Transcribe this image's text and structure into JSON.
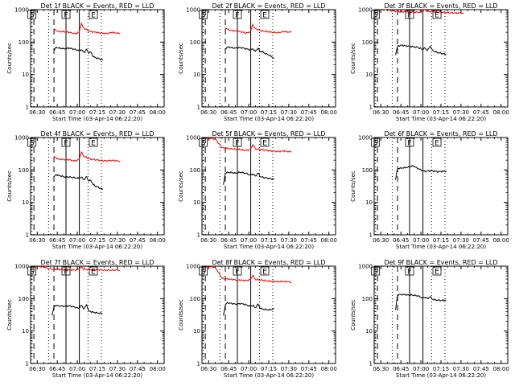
{
  "chart_data": {
    "type": "line",
    "layout": "3x3 grid",
    "x_tick_labels": [
      "06:30",
      "06:45",
      "07:00",
      "07:15",
      "07:30",
      "07:45",
      "08:00"
    ],
    "x_range_minutes_after_0630": [
      -5,
      95
    ],
    "xlabel": "Start Time (03-Apr-14 06:22:20)",
    "ylabel": "Counts/sec",
    "yscale": "log",
    "ylim": [
      1,
      1000
    ],
    "y_tick_labels": [
      "1",
      "10",
      "100",
      "1000"
    ],
    "series_legend": {
      "events_color": "#000000",
      "lld_color": "#ff0000"
    },
    "marker_labels": {
      "start": "S",
      "flare": "F",
      "end": "E"
    },
    "panels": [
      {
        "title": "Det 1f BLACK = Events, RED = LLD",
        "dashed": [
          -2.5,
          12.5
        ],
        "dotted": [
          -4,
          8.5,
          38,
          48
        ],
        "solid": [
          21.5,
          31.5
        ],
        "t_end": 42,
        "events": [
          [
            12.5,
            55
          ],
          [
            14,
            70
          ],
          [
            16,
            65
          ],
          [
            20,
            63
          ],
          [
            24,
            65
          ],
          [
            28,
            60
          ],
          [
            31,
            55
          ],
          [
            33,
            58
          ],
          [
            35,
            48
          ],
          [
            37,
            60
          ],
          [
            38.5,
            45
          ],
          [
            40,
            50
          ],
          [
            42,
            35
          ],
          [
            45,
            32
          ],
          [
            49,
            28
          ]
        ],
        "lld": [
          [
            12.5,
            260
          ],
          [
            14,
            230
          ],
          [
            16,
            210
          ],
          [
            20,
            210
          ],
          [
            24,
            200
          ],
          [
            26,
            190
          ],
          [
            28,
            180
          ],
          [
            30,
            190
          ],
          [
            31.5,
            210
          ],
          [
            33,
            380
          ],
          [
            34.5,
            280
          ],
          [
            37,
            240
          ],
          [
            40,
            210
          ],
          [
            44,
            200
          ],
          [
            48,
            190
          ],
          [
            52,
            180
          ],
          [
            56,
            200
          ],
          [
            60,
            190
          ],
          [
            62,
            185
          ]
        ]
      },
      {
        "title": "Det 2f BLACK = Events, RED = LLD",
        "dashed": [
          -2.5,
          12.5
        ],
        "dotted": [
          -4,
          8.5,
          38,
          48
        ],
        "solid": [
          21.5,
          31.5
        ],
        "t_end": 42,
        "events": [
          [
            12.5,
            60
          ],
          [
            14,
            70
          ],
          [
            16,
            68
          ],
          [
            20,
            65
          ],
          [
            24,
            68
          ],
          [
            28,
            62
          ],
          [
            31,
            58
          ],
          [
            33,
            62
          ],
          [
            35,
            52
          ],
          [
            37,
            65
          ],
          [
            38.5,
            50
          ],
          [
            40,
            52
          ],
          [
            42,
            45
          ],
          [
            45,
            40
          ],
          [
            49,
            32
          ]
        ],
        "lld": [
          [
            12.5,
            280
          ],
          [
            14,
            250
          ],
          [
            16,
            230
          ],
          [
            20,
            220
          ],
          [
            24,
            210
          ],
          [
            26,
            200
          ],
          [
            28,
            190
          ],
          [
            30,
            200
          ],
          [
            31.5,
            220
          ],
          [
            33,
            350
          ],
          [
            34.5,
            270
          ],
          [
            37,
            240
          ],
          [
            40,
            220
          ],
          [
            44,
            210
          ],
          [
            48,
            200
          ],
          [
            52,
            195
          ],
          [
            56,
            210
          ],
          [
            60,
            205
          ],
          [
            62,
            200
          ]
        ]
      },
      {
        "title": "Det 3f BLACK = Events, RED = LLD",
        "dashed": [
          -2.5,
          12.5
        ],
        "dotted": [
          -4,
          8.5,
          38,
          48
        ],
        "solid": [
          21.5,
          31.5
        ],
        "t_end": 42,
        "events": [
          [
            11,
            40
          ],
          [
            12.5,
            75
          ],
          [
            15,
            80
          ],
          [
            20,
            75
          ],
          [
            24,
            72
          ],
          [
            28,
            68
          ],
          [
            31,
            60
          ],
          [
            33,
            65
          ],
          [
            35,
            55
          ],
          [
            37,
            75
          ],
          [
            38.5,
            58
          ],
          [
            40,
            52
          ],
          [
            42,
            48
          ],
          [
            45,
            45
          ],
          [
            49,
            42
          ]
        ],
        "lld": [
          [
            -4,
            1000
          ],
          [
            5,
            980
          ],
          [
            10,
            900
          ],
          [
            12.5,
            880
          ],
          [
            20,
            860
          ],
          [
            24,
            840
          ],
          [
            28,
            830
          ],
          [
            30,
            850
          ],
          [
            31.5,
            920
          ],
          [
            33,
            1000
          ],
          [
            35,
            880
          ],
          [
            40,
            860
          ],
          [
            44,
            840
          ],
          [
            48,
            820
          ],
          [
            52,
            800
          ],
          [
            56,
            790
          ],
          [
            60,
            780
          ],
          [
            62,
            760
          ]
        ]
      },
      {
        "title": "Det 4f BLACK = Events, RED = LLD",
        "dashed": [
          -2.5,
          12.5
        ],
        "dotted": [
          -4,
          8.5,
          38,
          48
        ],
        "solid": [
          21.5,
          31.5
        ],
        "t_end": 42,
        "events": [
          [
            12.5,
            60
          ],
          [
            14,
            72
          ],
          [
            16,
            68
          ],
          [
            20,
            62
          ],
          [
            24,
            60
          ],
          [
            28,
            58
          ],
          [
            31,
            55
          ],
          [
            33,
            60
          ],
          [
            35,
            50
          ],
          [
            37,
            62
          ],
          [
            38.5,
            45
          ],
          [
            40,
            48
          ],
          [
            42,
            35
          ],
          [
            45,
            30
          ],
          [
            49,
            25
          ]
        ],
        "lld": [
          [
            12.5,
            260
          ],
          [
            14,
            240
          ],
          [
            16,
            215
          ],
          [
            20,
            210
          ],
          [
            24,
            205
          ],
          [
            26,
            195
          ],
          [
            28,
            190
          ],
          [
            30,
            200
          ],
          [
            31.5,
            220
          ],
          [
            33,
            360
          ],
          [
            34.5,
            270
          ],
          [
            37,
            240
          ],
          [
            40,
            215
          ],
          [
            44,
            205
          ],
          [
            48,
            195
          ],
          [
            52,
            190
          ],
          [
            56,
            200
          ],
          [
            60,
            190
          ],
          [
            62,
            185
          ]
        ]
      },
      {
        "title": "Det 5f BLACK = Events, RED = LLD",
        "dashed": [
          -2.5,
          12.5
        ],
        "dotted": [
          -4,
          8.5,
          38,
          48
        ],
        "solid": [
          21.5,
          31.5
        ],
        "t_end": 42,
        "events": [
          [
            11,
            35
          ],
          [
            12.5,
            80
          ],
          [
            15,
            85
          ],
          [
            20,
            80
          ],
          [
            24,
            85
          ],
          [
            28,
            78
          ],
          [
            31,
            70
          ],
          [
            33,
            75
          ],
          [
            35,
            65
          ],
          [
            37,
            80
          ],
          [
            38.5,
            62
          ],
          [
            40,
            60
          ],
          [
            42,
            58
          ],
          [
            45,
            55
          ],
          [
            49,
            52
          ]
        ],
        "lld": [
          [
            -4,
            1000
          ],
          [
            5,
            900
          ],
          [
            10,
            480
          ],
          [
            12.5,
            470
          ],
          [
            20,
            440
          ],
          [
            24,
            420
          ],
          [
            28,
            400
          ],
          [
            30,
            410
          ],
          [
            31.5,
            450
          ],
          [
            33,
            600
          ],
          [
            35,
            450
          ],
          [
            40,
            420
          ],
          [
            44,
            400
          ],
          [
            48,
            380
          ],
          [
            52,
            370
          ],
          [
            56,
            380
          ],
          [
            60,
            370
          ],
          [
            62,
            360
          ]
        ]
      },
      {
        "title": "Det 6f BLACK = Events, RED = LLD",
        "dashed": [
          -2.5,
          12.5
        ],
        "dotted": [
          -4,
          8.5,
          38,
          48
        ],
        "solid": [
          21.5,
          31.5
        ],
        "t_end": 42,
        "events": [
          [
            11,
            50
          ],
          [
            12.5,
            110
          ],
          [
            15,
            115
          ],
          [
            20,
            120
          ],
          [
            22,
            125
          ],
          [
            24,
            135
          ],
          [
            26,
            120
          ],
          [
            28,
            110
          ],
          [
            30,
            100
          ],
          [
            33,
            90
          ],
          [
            37,
            95
          ],
          [
            40,
            92
          ],
          [
            42,
            88
          ],
          [
            45,
            90
          ],
          [
            49,
            92
          ]
        ],
        "lld": []
      },
      {
        "title": "Det 7f BLACK = Events, RED = LLD",
        "dashed": [
          -2.5,
          12.5
        ],
        "dotted": [
          -4,
          8.5,
          38,
          48
        ],
        "solid": [
          21.5,
          31.5
        ],
        "t_end": 42,
        "events": [
          [
            11,
            30
          ],
          [
            12.5,
            55
          ],
          [
            14,
            62
          ],
          [
            16,
            60
          ],
          [
            20,
            58
          ],
          [
            24,
            60
          ],
          [
            28,
            55
          ],
          [
            31,
            50
          ],
          [
            33,
            62
          ],
          [
            35,
            48
          ],
          [
            37,
            65
          ],
          [
            38.5,
            42
          ],
          [
            40,
            40
          ],
          [
            42,
            38
          ],
          [
            45,
            36
          ],
          [
            49,
            35
          ]
        ],
        "lld": [
          [
            -4,
            1000
          ],
          [
            5,
            950
          ],
          [
            10,
            820
          ],
          [
            12.5,
            800
          ],
          [
            20,
            780
          ],
          [
            24,
            770
          ],
          [
            28,
            760
          ],
          [
            30,
            780
          ],
          [
            31.5,
            820
          ],
          [
            33,
            950
          ],
          [
            35,
            800
          ],
          [
            40,
            780
          ],
          [
            44,
            770
          ],
          [
            48,
            760
          ],
          [
            52,
            750
          ],
          [
            56,
            760
          ],
          [
            60,
            750
          ],
          [
            62,
            740
          ]
        ]
      },
      {
        "title": "Det 8f BLACK = Events, RED = LLD",
        "dashed": [
          -2.5,
          12.5
        ],
        "dotted": [
          -4,
          8.5,
          38,
          48
        ],
        "solid": [
          21.5,
          31.5
        ],
        "t_end": 42,
        "events": [
          [
            11,
            30
          ],
          [
            12.5,
            65
          ],
          [
            14,
            75
          ],
          [
            16,
            72
          ],
          [
            20,
            68
          ],
          [
            24,
            70
          ],
          [
            28,
            65
          ],
          [
            31,
            58
          ],
          [
            33,
            62
          ],
          [
            35,
            52
          ],
          [
            37,
            68
          ],
          [
            38.5,
            50
          ],
          [
            40,
            48
          ],
          [
            42,
            46
          ],
          [
            45,
            45
          ],
          [
            49,
            48
          ]
        ],
        "lld": [
          [
            -4,
            1000
          ],
          [
            5,
            920
          ],
          [
            10,
            420
          ],
          [
            12.5,
            410
          ],
          [
            20,
            380
          ],
          [
            24,
            370
          ],
          [
            28,
            360
          ],
          [
            30,
            370
          ],
          [
            31.5,
            400
          ],
          [
            33,
            520
          ],
          [
            35,
            390
          ],
          [
            40,
            370
          ],
          [
            44,
            350
          ],
          [
            48,
            340
          ],
          [
            52,
            330
          ],
          [
            56,
            340
          ],
          [
            60,
            330
          ],
          [
            62,
            320
          ]
        ]
      },
      {
        "title": "Det 9f BLACK = Events, RED = LLD",
        "dashed": [
          -2.5,
          12.5
        ],
        "dotted": [
          -4,
          8.5,
          38,
          48
        ],
        "solid": [
          21.5,
          31.5
        ],
        "t_end": 42,
        "events": [
          [
            11,
            45
          ],
          [
            12.5,
            130
          ],
          [
            15,
            135
          ],
          [
            20,
            130
          ],
          [
            24,
            128
          ],
          [
            28,
            120
          ],
          [
            31,
            105
          ],
          [
            33,
            110
          ],
          [
            35,
            100
          ],
          [
            37,
            115
          ],
          [
            38.5,
            95
          ],
          [
            40,
            92
          ],
          [
            42,
            90
          ],
          [
            45,
            88
          ],
          [
            49,
            90
          ]
        ],
        "lld": []
      }
    ]
  }
}
